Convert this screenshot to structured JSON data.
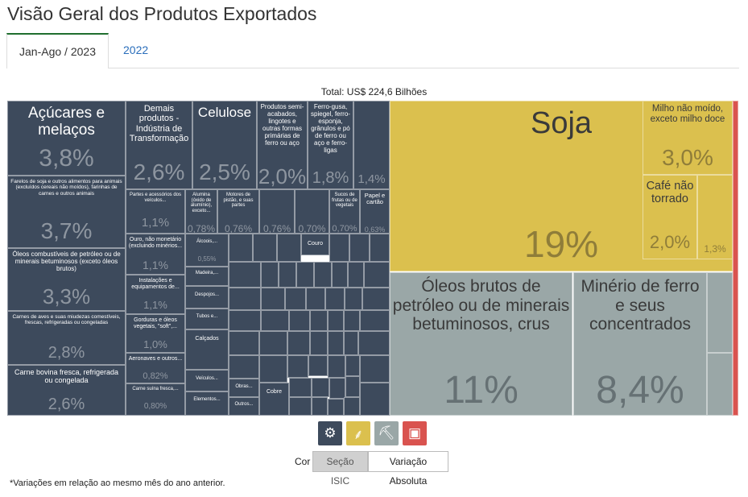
{
  "page": {
    "title": "Visão Geral dos Produtos Exportados",
    "tabs": [
      {
        "label": "Jan-Ago / 2023",
        "active": true
      },
      {
        "label": "2022",
        "active": false
      }
    ],
    "total_label": "Total: US$ 224,6 Bilhões",
    "cor_label": "Cor",
    "color_buttons": [
      {
        "label": "Seção ISIC",
        "selected": true
      },
      {
        "label": "Variação Absoluta",
        "selected": false
      }
    ],
    "footnote": "*Variações em relação ao mesmo mês do ano anterior."
  },
  "colors": {
    "industria": "#3d4a5c",
    "agro": "#dbc04e",
    "extrativa": "#9aa7a7",
    "outros": "#d9534f",
    "tab_accent": "#1f6e2e",
    "link": "#2a6ebb"
  },
  "legend_icons": [
    {
      "name": "gears-icon",
      "glyph": "⚙",
      "color": "#3d4a5c"
    },
    {
      "name": "wheat-icon",
      "glyph": "⸙",
      "color": "#dbc04e"
    },
    {
      "name": "pickaxe-icon",
      "glyph": "⛏",
      "color": "#9aa7a7"
    },
    {
      "name": "box-icon",
      "glyph": "▣",
      "color": "#d9534f"
    }
  ],
  "chart_data": {
    "type": "treemap",
    "total": "Total: US$ 224,6 Bilhões",
    "items": [
      {
        "label": "Soja",
        "value": "19%",
        "group": "agro"
      },
      {
        "label": "Óleos brutos de petróleo ou de minerais betuminosos, crus",
        "value": "11%",
        "group": "extrativa"
      },
      {
        "label": "Minério de ferro e seus concentrados",
        "value": "8,4%",
        "group": "extrativa"
      },
      {
        "label": "Açúcares e melaços",
        "value": "3,8%",
        "group": "industria"
      },
      {
        "label": "Farelos de soja e outros alimentos para animais (excluídos cereais não moídos), farinhas de carnes e outros animais",
        "value": "3,7%",
        "group": "industria"
      },
      {
        "label": "Óleos combustíveis de petróleo ou de minerais betuminosos (exceto óleos brutos)",
        "value": "3,3%",
        "group": "industria"
      },
      {
        "label": "Milho não moído, exceto milho doce",
        "value": "3,0%",
        "group": "agro"
      },
      {
        "label": "Carnes de aves e suas miudezas comestíveis, frescas, refrigeradas ou congeladas",
        "value": "2,8%",
        "group": "industria"
      },
      {
        "label": "Demais produtos - Indústria de Transformação",
        "value": "2,6%",
        "group": "industria"
      },
      {
        "label": "Carne bovina fresca, refrigerada ou congelada",
        "value": "2,6%",
        "group": "industria"
      },
      {
        "label": "Celulose",
        "value": "2,5%",
        "group": "industria"
      },
      {
        "label": "Produtos semi-acabados, lingotes e outras formas primárias de ferro ou aço",
        "value": "2,0%",
        "group": "industria"
      },
      {
        "label": "Café não torrado",
        "value": "2,0%",
        "group": "agro"
      },
      {
        "label": "Ferro-gusa, spiegel, ferro-esponja, grânulos e pó de ferro ou aço e ferro-ligas",
        "value": "1,8%",
        "group": "industria"
      },
      {
        "label": "",
        "value": "1,4%",
        "group": "industria"
      },
      {
        "label": "",
        "value": "1,3%",
        "group": "agro"
      },
      {
        "label": "Partes e acessórios dos veículos...",
        "value": "1,1%",
        "group": "industria"
      },
      {
        "label": "Ouro, não monetário (excluindo minérios...",
        "value": "1,1%",
        "group": "industria"
      },
      {
        "label": "Instalações e equipamentos de...",
        "value": "1,1%",
        "group": "industria"
      },
      {
        "label": "Gorduras e óleos vegetais, \"soft\",...",
        "value": "1,0%",
        "group": "industria"
      },
      {
        "label": "Aeronaves e outros...",
        "value": "0,82%",
        "group": "industria"
      },
      {
        "label": "Carne suína fresca,...",
        "value": "0,80%",
        "group": "industria"
      },
      {
        "label": "Alumina (óxido de alumínio), exceto...",
        "value": "0,78%",
        "group": "industria"
      },
      {
        "label": "Motores de pistão, e suas partes",
        "value": "0,76%",
        "group": "industria"
      },
      {
        "label": "",
        "value": "0,76%",
        "group": "industria"
      },
      {
        "label": "",
        "value": "0,70%",
        "group": "industria"
      },
      {
        "label": "Sucos de frutas ou de vegetais",
        "value": "0,70%",
        "group": "industria"
      },
      {
        "label": "Papel e cartão",
        "value": "0,63%",
        "group": "industria"
      },
      {
        "label": "Álcoois,...",
        "value": "0,55%",
        "group": "industria"
      },
      {
        "label": "Madeira,...",
        "value": "",
        "group": "industria"
      },
      {
        "label": "Despojos...",
        "value": "",
        "group": "industria"
      },
      {
        "label": "Tubos e...",
        "value": "",
        "group": "industria"
      },
      {
        "label": "Calçados",
        "value": "",
        "group": "industria"
      },
      {
        "label": "Veículos...",
        "value": "",
        "group": "industria"
      },
      {
        "label": "Elementos...",
        "value": "",
        "group": "industria"
      },
      {
        "label": "Obras...",
        "value": "",
        "group": "industria"
      },
      {
        "label": "Outros...",
        "value": "",
        "group": "industria"
      },
      {
        "label": "Cobre",
        "value": "",
        "group": "industria"
      },
      {
        "label": "Couro",
        "value": "",
        "group": "industria"
      }
    ]
  }
}
